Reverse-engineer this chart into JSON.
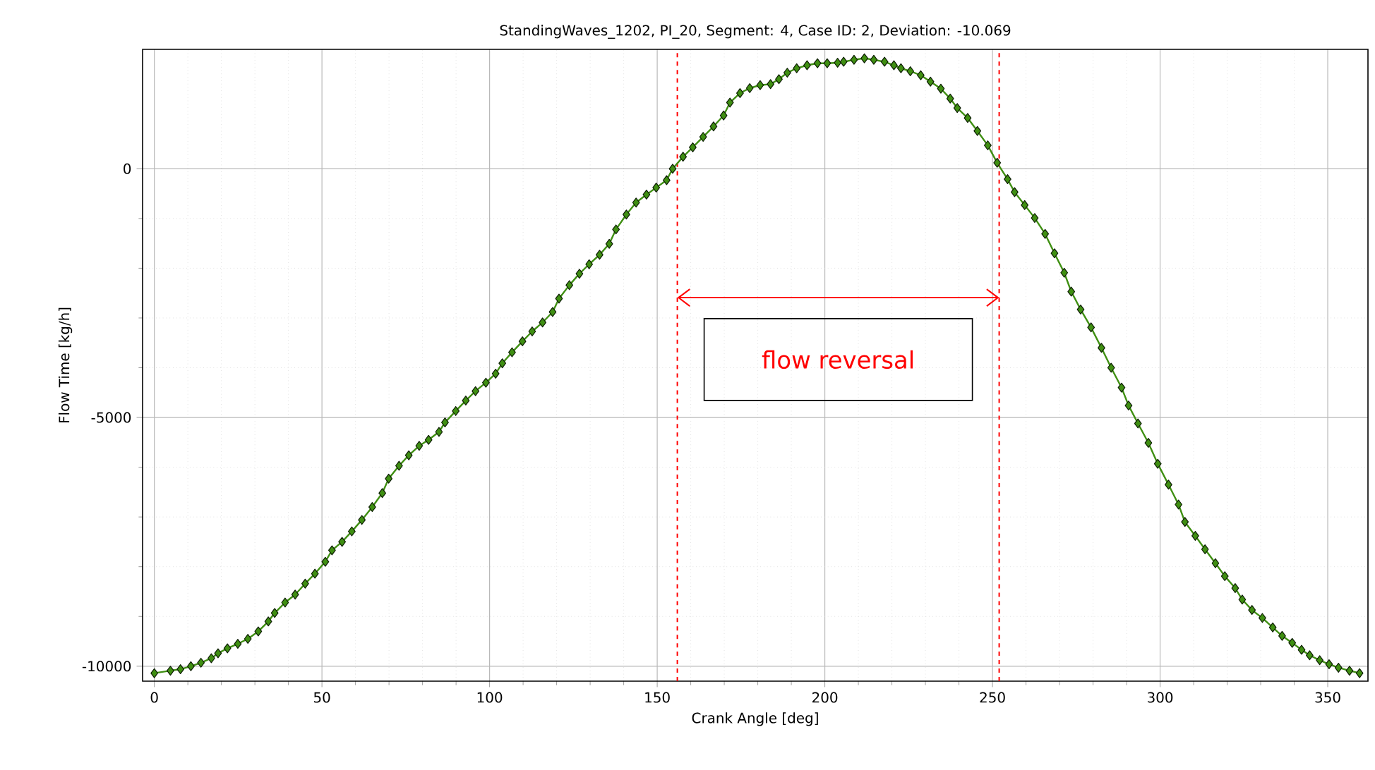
{
  "chart_data": {
    "type": "line",
    "title": "StandingWaves_1202, PI_20, Segment: 4, Case ID: 2, Deviation: -10.069",
    "xlabel": "Crank Angle [deg]",
    "ylabel": "Flow Time [kg/h]",
    "x": [
      0,
      4.8,
      7.8,
      10.9,
      13.9,
      17,
      19,
      21.8,
      24.9,
      27.9,
      31,
      34,
      35.9,
      39,
      42,
      45,
      47.9,
      51,
      53,
      56,
      58.9,
      61.9,
      65,
      68,
      69.9,
      73,
      75.9,
      79,
      81.8,
      84.9,
      86.7,
      89.9,
      92.9,
      95.8,
      98.9,
      101.8,
      103.8,
      106.7,
      109.8,
      112.7,
      115.8,
      118.8,
      120.7,
      123.8,
      126.8,
      129.7,
      132.8,
      135.7,
      137.7,
      140.8,
      143.7,
      146.8,
      149.7,
      152.8,
      154.6,
      157.7,
      160.6,
      163.7,
      166.8,
      169.8,
      171.7,
      174.7,
      177.6,
      180.7,
      183.8,
      186.3,
      188.8,
      191.6,
      194.7,
      197.8,
      200.7,
      203.8,
      205.6,
      208.7,
      211.8,
      214.6,
      217.8,
      220.6,
      222.7,
      225.5,
      228.6,
      231.5,
      234.6,
      237.4,
      239.5,
      242.6,
      245.5,
      248.6,
      251.4,
      254.5,
      256.6,
      259.6,
      262.6,
      265.7,
      268.5,
      271.4,
      273.5,
      276.3,
      279.4,
      282.5,
      285.4,
      288.5,
      290.6,
      293.4,
      296.5,
      299.3,
      302.5,
      305.5,
      307.4,
      310.5,
      313.4,
      316.5,
      319.3,
      322.4,
      324.5,
      327.4,
      330.5,
      333.6,
      336.4,
      339.4,
      342.2,
      344.6,
      347.6,
      350.4,
      353.2,
      356.5,
      359.5
    ],
    "series": [
      {
        "color": "#3f8f12",
        "values": [
          -10140,
          -10090,
          -10060,
          -10000,
          -9930,
          -9840,
          -9740,
          -9640,
          -9550,
          -9450,
          -9300,
          -9100,
          -8930,
          -8720,
          -8560,
          -8340,
          -8140,
          -7900,
          -7670,
          -7500,
          -7290,
          -7060,
          -6800,
          -6520,
          -6230,
          -5970,
          -5760,
          -5570,
          -5450,
          -5290,
          -5100,
          -4870,
          -4660,
          -4470,
          -4300,
          -4120,
          -3910,
          -3690,
          -3470,
          -3270,
          -3090,
          -2880,
          -2610,
          -2340,
          -2110,
          -1920,
          -1730,
          -1510,
          -1220,
          -920,
          -680,
          -520,
          -380,
          -230,
          0,
          240,
          430,
          640,
          850,
          1070,
          1330,
          1520,
          1620,
          1680,
          1700,
          1800,
          1930,
          2020,
          2080,
          2120,
          2120,
          2130,
          2150,
          2190,
          2220,
          2190,
          2150,
          2080,
          2020,
          1960,
          1880,
          1750,
          1610,
          1410,
          1220,
          1020,
          760,
          470,
          120,
          -210,
          -470,
          -730,
          -990,
          -1310,
          -1700,
          -2090,
          -2470,
          -2830,
          -3190,
          -3600,
          -4000,
          -4400,
          -4760,
          -5120,
          -5510,
          -5930,
          -6350,
          -6750,
          -7100,
          -7380,
          -7650,
          -7930,
          -8190,
          -8430,
          -8660,
          -8870,
          -9030,
          -9220,
          -9390,
          -9530,
          -9670,
          -9780,
          -9880,
          -9960,
          -10030,
          -10090,
          -10140
        ]
      }
    ],
    "xlim": [
      -3.5,
      362
    ],
    "ylim": [
      -10300,
      2400
    ],
    "xticks": [
      0,
      50,
      100,
      150,
      200,
      250,
      300,
      350
    ],
    "yticks": [
      -10000,
      -5000,
      0
    ],
    "grid": true,
    "marker": "diamond",
    "line_style": "solid",
    "ref_lines": [
      {
        "axis": "x",
        "value": 156,
        "color": "#ff0000",
        "line_style": "dashed"
      },
      {
        "axis": "x",
        "value": 252,
        "color": "#ff0000",
        "line_style": "dashed"
      }
    ],
    "annotations": [
      "flow reversal"
    ]
  }
}
